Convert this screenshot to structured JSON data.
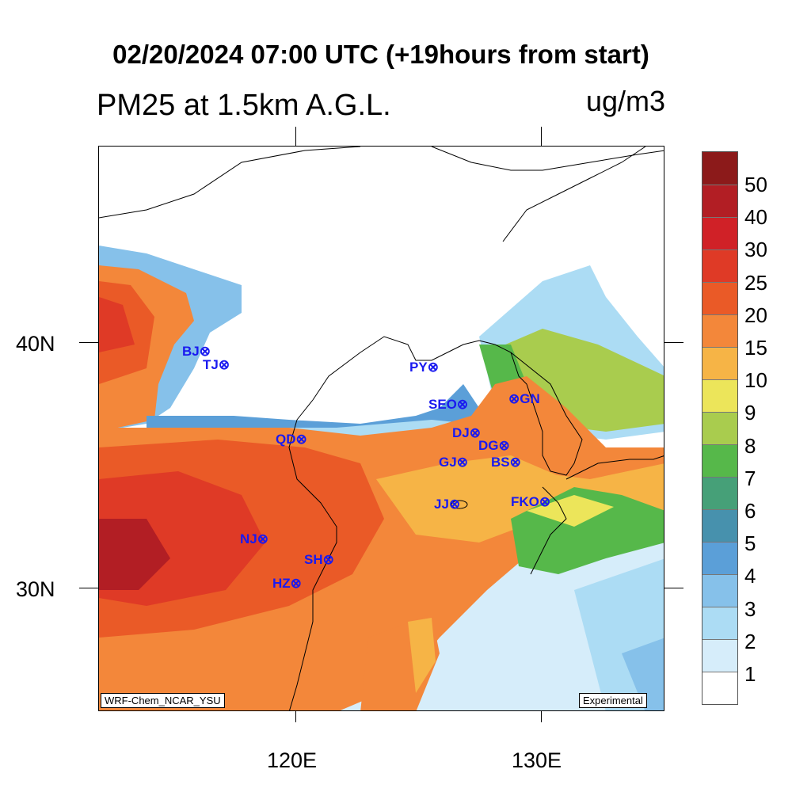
{
  "title": "02/20/2024 07:00 UTC (+19hours from start)",
  "subtitle_left": "PM25 at 1.5km A.G.L.",
  "units": "ug/m3",
  "axes": {
    "lat_labels": [
      "40N",
      "30N"
    ],
    "lon_labels": [
      "120E",
      "130E"
    ]
  },
  "stations": [
    {
      "code": "BJ"
    },
    {
      "code": "TJ"
    },
    {
      "code": "QD"
    },
    {
      "code": "PY"
    },
    {
      "code": "SEO"
    },
    {
      "code": "GN"
    },
    {
      "code": "DJ"
    },
    {
      "code": "DG"
    },
    {
      "code": "GJ"
    },
    {
      "code": "BS"
    },
    {
      "code": "JJ"
    },
    {
      "code": "FKO"
    },
    {
      "code": "NJ"
    },
    {
      "code": "SH"
    },
    {
      "code": "HZ"
    }
  ],
  "model_tag": "WRF-Chem_NCAR_YSU",
  "status_tag": "Experimental",
  "legend": {
    "labels": [
      "50",
      "40",
      "30",
      "25",
      "20",
      "15",
      "10",
      "9",
      "8",
      "7",
      "6",
      "5",
      "4",
      "3",
      "2",
      "1"
    ],
    "colors": [
      "#8c1a1a",
      "#b21e24",
      "#d02127",
      "#df3a26",
      "#ea5a27",
      "#f3873a",
      "#f6b446",
      "#ece55a",
      "#a9cc4e",
      "#56b84a",
      "#46a078",
      "#4791ad",
      "#5b9fd8",
      "#86c1ea",
      "#acdcf4",
      "#d6edfa",
      "#ffffff"
    ]
  }
}
